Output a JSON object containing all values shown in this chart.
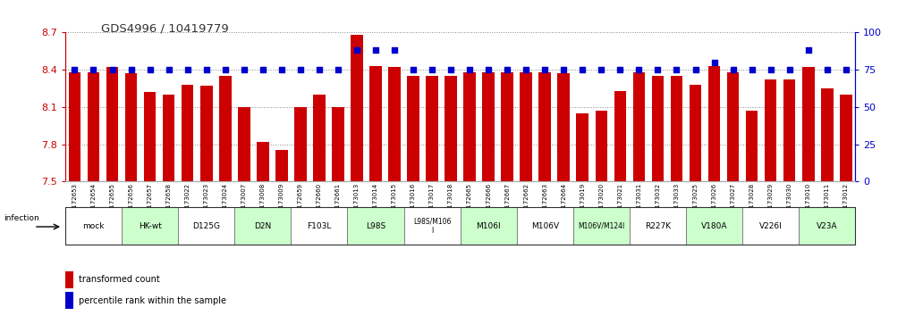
{
  "title": "GDS4996 / 10419779",
  "ylim_left": [
    7.5,
    8.7
  ],
  "ylim_right": [
    0,
    100
  ],
  "yticks_left": [
    7.5,
    7.8,
    8.1,
    8.4,
    8.7
  ],
  "yticks_right": [
    0,
    25,
    50,
    75,
    100
  ],
  "samples": [
    "GSM1172653",
    "GSM1172654",
    "GSM1172655",
    "GSM1172656",
    "GSM1172657",
    "GSM1172658",
    "GSM1173022",
    "GSM1173023",
    "GSM1173024",
    "GSM1173007",
    "GSM1173008",
    "GSM1173009",
    "GSM1172659",
    "GSM1172660",
    "GSM1172661",
    "GSM1173013",
    "GSM1173014",
    "GSM1173015",
    "GSM1173016",
    "GSM1173017",
    "GSM1173018",
    "GSM1172665",
    "GSM1172666",
    "GSM1172667",
    "GSM1172662",
    "GSM1172663",
    "GSM1172664",
    "GSM1173019",
    "GSM1173020",
    "GSM1173021",
    "GSM1173031",
    "GSM1173032",
    "GSM1173033",
    "GSM1173025",
    "GSM1173026",
    "GSM1173027",
    "GSM1173028",
    "GSM1173029",
    "GSM1173030",
    "GSM1173010",
    "GSM1173011",
    "GSM1173012"
  ],
  "bar_values": [
    8.38,
    8.38,
    8.42,
    8.37,
    8.22,
    8.2,
    8.28,
    8.27,
    8.35,
    8.1,
    7.82,
    7.75,
    8.1,
    8.2,
    8.1,
    8.68,
    8.43,
    8.42,
    8.35,
    8.35,
    8.35,
    8.38,
    8.38,
    8.38,
    8.38,
    8.38,
    8.37,
    8.05,
    8.07,
    8.23,
    8.38,
    8.35,
    8.35,
    8.28,
    8.43,
    8.38,
    8.07,
    8.32,
    8.32,
    8.42,
    8.25,
    8.2
  ],
  "percentile_values": [
    75,
    75,
    75,
    75,
    75,
    75,
    75,
    75,
    75,
    75,
    75,
    75,
    75,
    75,
    75,
    88,
    88,
    88,
    75,
    75,
    75,
    75,
    75,
    75,
    75,
    75,
    75,
    75,
    75,
    75,
    75,
    75,
    75,
    75,
    80,
    75,
    75,
    75,
    75,
    88,
    75,
    75
  ],
  "groups": [
    {
      "label": "mock",
      "start": 0,
      "end": 2,
      "color": "#ffffff"
    },
    {
      "label": "HK-wt",
      "start": 3,
      "end": 5,
      "color": "#ccffcc"
    },
    {
      "label": "D125G",
      "start": 6,
      "end": 8,
      "color": "#ffffff"
    },
    {
      "label": "D2N",
      "start": 9,
      "end": 11,
      "color": "#ccffcc"
    },
    {
      "label": "F103L",
      "start": 12,
      "end": 14,
      "color": "#ffffff"
    },
    {
      "label": "L98S",
      "start": 15,
      "end": 17,
      "color": "#ccffcc"
    },
    {
      "label": "L98S/M106\nI",
      "start": 18,
      "end": 20,
      "color": "#ffffff"
    },
    {
      "label": "M106I",
      "start": 21,
      "end": 23,
      "color": "#ccffcc"
    },
    {
      "label": "M106V",
      "start": 24,
      "end": 26,
      "color": "#ffffff"
    },
    {
      "label": "M106V/M124I",
      "start": 27,
      "end": 29,
      "color": "#ccffcc"
    },
    {
      "label": "R227K",
      "start": 30,
      "end": 32,
      "color": "#ffffff"
    },
    {
      "label": "V180A",
      "start": 33,
      "end": 35,
      "color": "#ccffcc"
    },
    {
      "label": "V226I",
      "start": 36,
      "end": 38,
      "color": "#ffffff"
    },
    {
      "label": "V23A",
      "start": 39,
      "end": 41,
      "color": "#ccffcc"
    }
  ],
  "bar_color": "#cc0000",
  "dot_color": "#0000cc",
  "title_color": "#333333",
  "left_axis_color": "#cc0000",
  "right_axis_color": "#0000cc",
  "grid_color": "#888888",
  "infection_label": "infection",
  "legend_bar_label": "transformed count",
  "legend_dot_label": "percentile rank within the sample"
}
